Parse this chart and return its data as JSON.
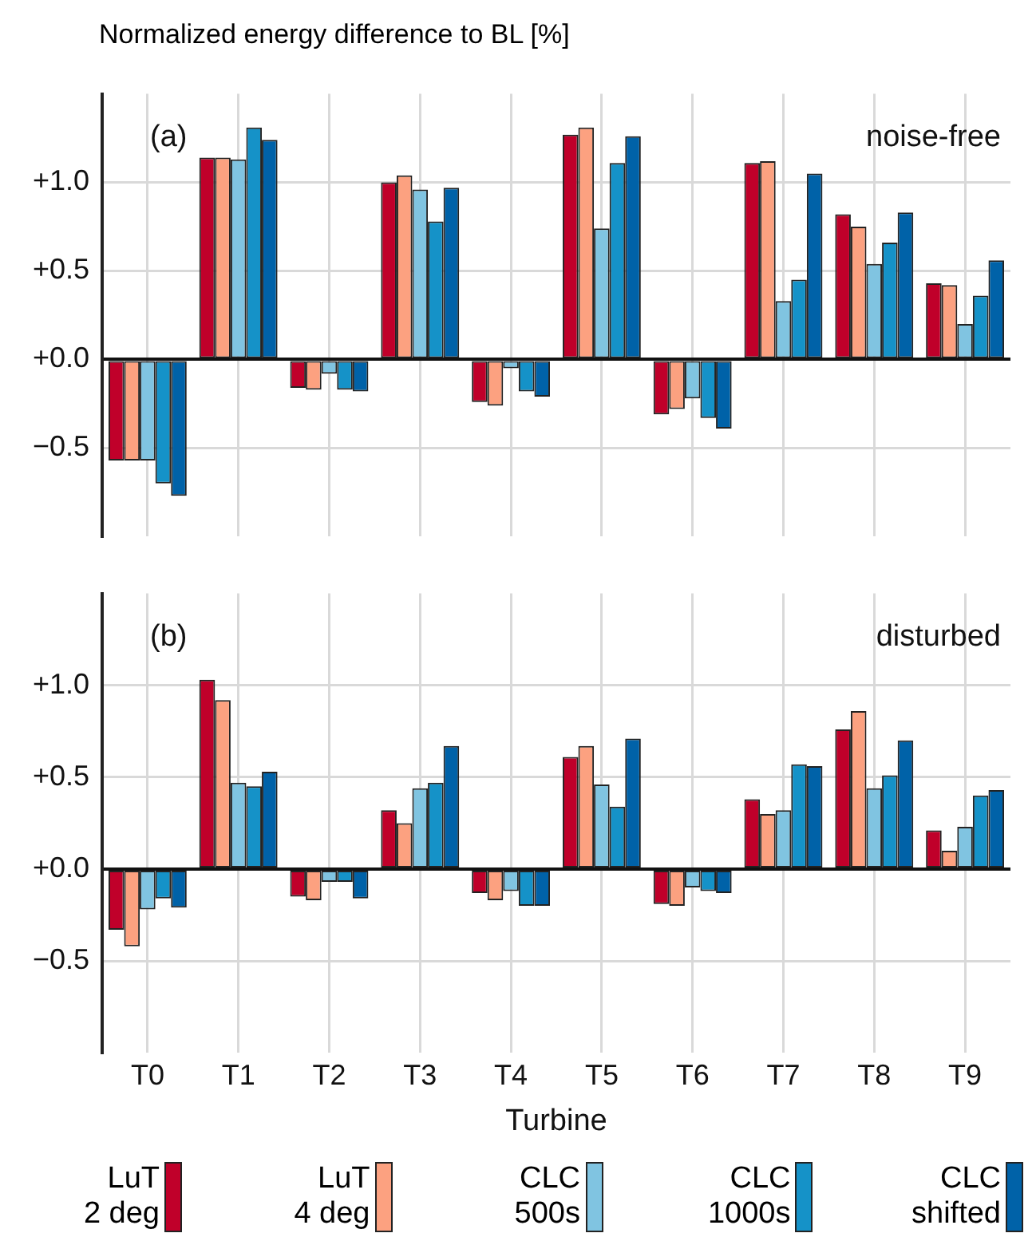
{
  "chart_data": [
    {
      "type": "bar",
      "ylabel": "Normalized energy difference to BL [%]",
      "categories": [
        null,
        null,
        null,
        null,
        null,
        null,
        null,
        null,
        null,
        null
      ],
      "series": [
        {
          "color": "#c0002a",
          "values": [
            -0.57,
            1.14,
            -0.16,
            1.0,
            -0.24,
            1.27,
            -0.31,
            1.11,
            0.82,
            0.43
          ]
        },
        {
          "color": "#fca180",
          "values": [
            -0.57,
            1.14,
            -0.17,
            1.04,
            -0.26,
            1.31,
            -0.28,
            1.12,
            0.75,
            0.42
          ]
        },
        {
          "color": "#80c4e1",
          "values": [
            -0.57,
            1.13,
            -0.08,
            0.96,
            -0.05,
            0.74,
            -0.22,
            0.33,
            0.54,
            0.2
          ]
        },
        {
          "color": "#1592c8",
          "values": [
            -0.7,
            1.31,
            -0.17,
            0.78,
            -0.18,
            1.11,
            -0.33,
            0.45,
            0.66,
            0.36
          ]
        },
        {
          "color": "#0062a8",
          "values": [
            -0.77,
            1.24,
            -0.18,
            0.97,
            -0.21,
            1.26,
            -0.39,
            1.05,
            0.83,
            0.56
          ]
        }
      ],
      "ylim": [
        -1.0,
        1.5
      ],
      "yticks": [
        {
          "value": -0.5,
          "label": "−0.5"
        },
        {
          "value": 0,
          "label": "+0.0"
        },
        {
          "value": 0.5,
          "label": "+0.5"
        },
        {
          "value": 1.0,
          "label": "+1.0"
        }
      ],
      "grid": true,
      "tick_labels": "y",
      "annotations": [
        "(a)",
        "noise-free"
      ]
    },
    {
      "type": "bar",
      "xlabel": "Turbine",
      "categories": [
        "T0",
        "T1",
        "T2",
        "T3",
        "T4",
        "T5",
        "T6",
        "T7",
        "T8",
        "T9"
      ],
      "series": [
        {
          "name": "LuT 2 deg",
          "color": "#c0002a",
          "values": [
            -0.33,
            1.03,
            -0.15,
            0.32,
            -0.13,
            0.61,
            -0.19,
            0.38,
            0.76,
            0.21
          ]
        },
        {
          "name": "LuT 4 deg",
          "color": "#fca180",
          "values": [
            -0.42,
            0.92,
            -0.17,
            0.25,
            -0.17,
            0.67,
            -0.2,
            0.3,
            0.86,
            0.1
          ]
        },
        {
          "name": "CLC 500s",
          "color": "#80c4e1",
          "values": [
            -0.22,
            0.47,
            -0.07,
            0.44,
            -0.12,
            0.46,
            -0.1,
            0.32,
            0.44,
            0.23
          ]
        },
        {
          "name": "CLC 1000s",
          "color": "#1592c8",
          "values": [
            -0.16,
            0.45,
            -0.07,
            0.47,
            -0.2,
            0.34,
            -0.12,
            0.57,
            0.51,
            0.4
          ]
        },
        {
          "name": "CLC shifted",
          "color": "#0062a8",
          "values": [
            -0.21,
            0.53,
            -0.16,
            0.67,
            -0.2,
            0.71,
            -0.13,
            0.56,
            0.7,
            0.43
          ]
        }
      ],
      "ylim": [
        -1.0,
        1.5
      ],
      "yticks": [
        {
          "value": -0.5,
          "label": "−0.5"
        },
        {
          "value": 0,
          "label": "+0.0"
        },
        {
          "value": 0.5,
          "label": "+0.5"
        },
        {
          "value": 1.0,
          "label": "+1.0"
        }
      ],
      "grid": true,
      "legend": "bottom",
      "annotations": [
        "(b)",
        "disturbed"
      ]
    }
  ]
}
